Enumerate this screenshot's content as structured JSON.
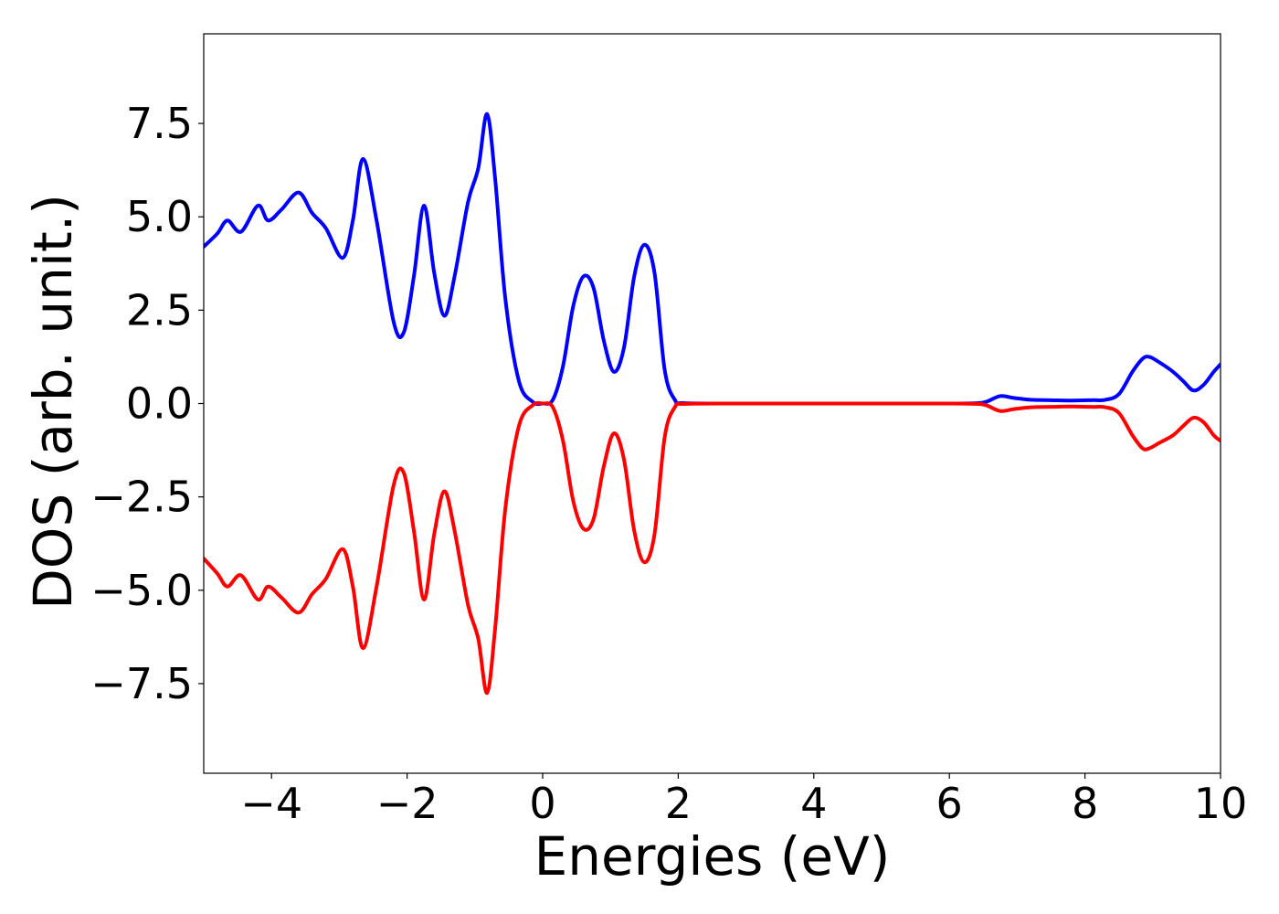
{
  "chart_data": {
    "type": "line",
    "title": "",
    "xlabel": "Energies (eV)",
    "ylabel": "DOS (arb. unit.)",
    "xlim": [
      -5,
      10
    ],
    "ylim": [
      -9.9,
      9.9
    ],
    "xticks": [
      -4,
      -2,
      0,
      2,
      4,
      6,
      8,
      10
    ],
    "xtick_labels": [
      "−4",
      "−2",
      "0",
      "2",
      "4",
      "6",
      "8",
      "10"
    ],
    "yticks": [
      -7.5,
      -5.0,
      -2.5,
      0.0,
      2.5,
      5.0,
      7.5
    ],
    "ytick_labels": [
      "−7.5",
      "−5.0",
      "−2.5",
      "0.0",
      "2.5",
      "5.0",
      "7.5"
    ],
    "grid": false,
    "legend": "none",
    "series": [
      {
        "color": "#0000ff",
        "x": [
          -5.0,
          -4.8,
          -4.65,
          -4.45,
          -4.2,
          -4.05,
          -3.85,
          -3.6,
          -3.4,
          -3.2,
          -2.95,
          -2.8,
          -2.65,
          -2.45,
          -2.2,
          -2.05,
          -1.9,
          -1.75,
          -1.6,
          -1.45,
          -1.3,
          -1.1,
          -0.95,
          -0.82,
          -0.7,
          -0.55,
          -0.35,
          -0.15,
          0.0,
          0.15,
          0.3,
          0.45,
          0.6,
          0.75,
          0.9,
          1.05,
          1.2,
          1.35,
          1.5,
          1.65,
          1.8,
          1.95,
          2.1,
          3.0,
          4.0,
          5.0,
          6.0,
          6.4,
          6.55,
          6.75,
          6.95,
          7.2,
          7.5,
          7.8,
          8.1,
          8.3,
          8.5,
          8.7,
          8.85,
          8.95,
          9.1,
          9.3,
          9.45,
          9.6,
          9.75,
          9.9,
          10.0
        ],
        "values": [
          4.2,
          4.55,
          4.9,
          4.6,
          5.3,
          4.9,
          5.2,
          5.65,
          5.1,
          4.7,
          3.9,
          4.9,
          6.55,
          4.9,
          2.2,
          1.9,
          3.4,
          5.3,
          3.5,
          2.35,
          3.4,
          5.4,
          6.3,
          7.75,
          6.0,
          2.8,
          0.6,
          0.05,
          0.0,
          0.1,
          1.0,
          2.6,
          3.4,
          3.1,
          1.7,
          0.85,
          1.5,
          3.4,
          4.25,
          3.5,
          0.9,
          0.1,
          0.01,
          0.0,
          0.0,
          0.0,
          0.0,
          0.01,
          0.05,
          0.2,
          0.15,
          0.1,
          0.09,
          0.08,
          0.09,
          0.1,
          0.25,
          0.85,
          1.2,
          1.25,
          1.1,
          0.85,
          0.6,
          0.35,
          0.5,
          0.85,
          1.05
        ]
      },
      {
        "color": "#ff0000",
        "x": [
          -5.0,
          -4.8,
          -4.65,
          -4.45,
          -4.2,
          -4.05,
          -3.85,
          -3.6,
          -3.4,
          -3.2,
          -2.95,
          -2.8,
          -2.65,
          -2.45,
          -2.2,
          -2.05,
          -1.9,
          -1.75,
          -1.6,
          -1.45,
          -1.3,
          -1.1,
          -0.95,
          -0.82,
          -0.7,
          -0.55,
          -0.35,
          -0.15,
          0.0,
          0.15,
          0.3,
          0.45,
          0.6,
          0.75,
          0.9,
          1.05,
          1.2,
          1.35,
          1.5,
          1.65,
          1.8,
          1.95,
          2.1,
          3.0,
          4.0,
          5.0,
          6.0,
          6.4,
          6.55,
          6.75,
          6.95,
          7.2,
          7.5,
          7.8,
          8.1,
          8.3,
          8.5,
          8.7,
          8.85,
          8.95,
          9.1,
          9.3,
          9.45,
          9.6,
          9.75,
          9.9,
          10.0
        ],
        "values": [
          -4.15,
          -4.55,
          -4.9,
          -4.6,
          -5.25,
          -4.9,
          -5.2,
          -5.6,
          -5.1,
          -4.7,
          -3.9,
          -4.9,
          -6.55,
          -4.9,
          -2.2,
          -1.85,
          -3.4,
          -5.25,
          -3.5,
          -2.35,
          -3.4,
          -5.4,
          -6.3,
          -7.75,
          -6.0,
          -2.8,
          -0.6,
          -0.05,
          0.0,
          -0.1,
          -1.0,
          -2.6,
          -3.35,
          -3.1,
          -1.7,
          -0.8,
          -1.5,
          -3.4,
          -4.25,
          -3.5,
          -0.9,
          -0.1,
          -0.01,
          0.0,
          0.0,
          0.0,
          0.0,
          -0.01,
          -0.05,
          -0.2,
          -0.15,
          -0.1,
          -0.09,
          -0.08,
          -0.09,
          -0.1,
          -0.25,
          -0.85,
          -1.2,
          -1.2,
          -1.05,
          -0.85,
          -0.6,
          -0.38,
          -0.5,
          -0.85,
          -1.0
        ]
      }
    ]
  }
}
